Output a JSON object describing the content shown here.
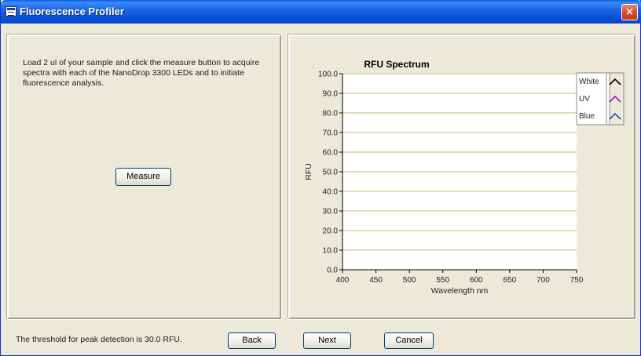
{
  "window": {
    "title": "Fluorescence Profiler",
    "close_label": "×"
  },
  "left_panel": {
    "instructions": "Load 2 ul of your sample and click the measure button to acquire spectra with each of the NanoDrop 3300 LEDs and to initiate fluorescence analysis.",
    "measure_label": "Measure"
  },
  "footer": {
    "status": "The threshold for peak detection is 30.0 RFU.",
    "back_label": "Back",
    "next_label": "Next",
    "cancel_label": "Cancel"
  },
  "chart_data": {
    "type": "line",
    "title": "RFU Spectrum",
    "xlabel": "Wavelength nm",
    "ylabel": "RFU",
    "xlim": [
      400,
      750
    ],
    "ylim": [
      0,
      100
    ],
    "x_ticks": [
      "400",
      "450",
      "500",
      "550",
      "600",
      "650",
      "700",
      "750"
    ],
    "y_ticks": [
      "0.0",
      "10.0",
      "20.0",
      "30.0",
      "40.0",
      "50.0",
      "60.0",
      "70.0",
      "80.0",
      "90.0",
      "100.0"
    ],
    "grid": true,
    "legend_position": "top-right",
    "series": [
      {
        "name": "White",
        "color": "#000000",
        "values": []
      },
      {
        "name": "UV",
        "color": "#c000c0",
        "values": []
      },
      {
        "name": "Blue",
        "color": "#1f4fb0",
        "values": []
      }
    ],
    "colors": {
      "plot_bg": "#ffffff",
      "grid": "#c8b878"
    }
  }
}
